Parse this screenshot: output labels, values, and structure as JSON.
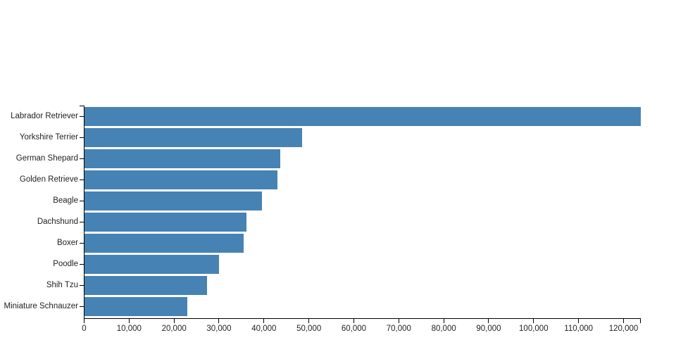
{
  "chart_data": {
    "type": "bar",
    "orientation": "horizontal",
    "title": "",
    "xlabel": "",
    "ylabel": "",
    "categories": [
      "Labrador Retriever",
      "Yorkshire Terrier",
      "German Shepard",
      "Golden Retrieve",
      "Beagle",
      "Dachshund",
      "Boxer",
      "Poodle",
      "Shih Tzu",
      "Miniature Schnauzer"
    ],
    "values": [
      123760,
      48346,
      43575,
      42962,
      39484,
      36033,
      35388,
      29939,
      27282,
      22920
    ],
    "xlim": [
      0,
      123760
    ],
    "x_ticks": [
      0,
      10000,
      20000,
      30000,
      40000,
      50000,
      60000,
      70000,
      80000,
      90000,
      100000,
      110000,
      120000
    ],
    "x_tick_labels": [
      "0",
      "10,000",
      "20,000",
      "30,000",
      "40,000",
      "50,000",
      "60,000",
      "70,000",
      "80,000",
      "90,000",
      "100,000",
      "110,000",
      "120,000"
    ],
    "grid": false,
    "legend": null,
    "colors": {
      "bar": "#4682b4",
      "axis": "#000000",
      "text": "#222222",
      "background": "#ffffff"
    }
  }
}
